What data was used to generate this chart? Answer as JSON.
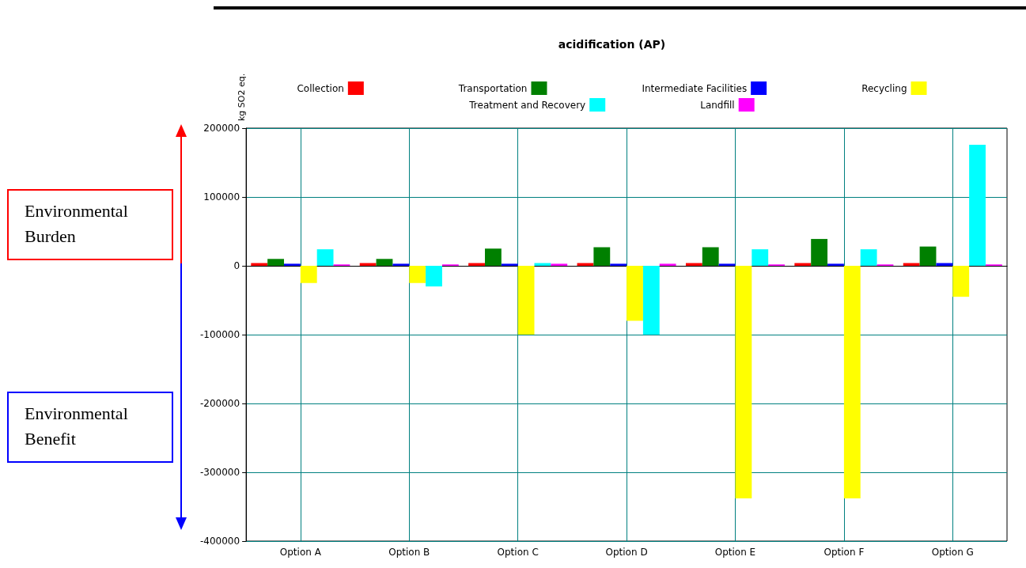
{
  "chart_data": {
    "type": "bar",
    "title": "acidification (AP)",
    "ylabel": "kg SO2 eq.",
    "categories": [
      "Option A",
      "Option B",
      "Option C",
      "Option D",
      "Option E",
      "Option F",
      "Option G"
    ],
    "series": [
      {
        "name": "Collection",
        "color": "#ff0000",
        "values": [
          4000,
          4000,
          4000,
          4000,
          4000,
          4000,
          4000
        ]
      },
      {
        "name": "Transportation",
        "color": "#008000",
        "values": [
          10000,
          10000,
          25000,
          27000,
          27000,
          39000,
          28000
        ]
      },
      {
        "name": "Intermediate Facilities",
        "color": "#0000ff",
        "values": [
          3000,
          3000,
          3000,
          3000,
          3000,
          3000,
          4000
        ]
      },
      {
        "name": "Recycling",
        "color": "#ffff00",
        "values": [
          -25000,
          -25000,
          -100000,
          -80000,
          -338000,
          -338000,
          -45000
        ]
      },
      {
        "name": "Treatment and Recovery",
        "color": "#00ffff",
        "values": [
          24000,
          -30000,
          4000,
          -100000,
          24000,
          24000,
          176000
        ]
      },
      {
        "name": "Landfill",
        "color": "#ff00ff",
        "values": [
          2000,
          2000,
          3000,
          3000,
          2000,
          2000,
          2000
        ]
      }
    ],
    "ylim": [
      -400000,
      200000
    ],
    "yticks": [
      -400000,
      -300000,
      -200000,
      -100000,
      0,
      100000,
      200000
    ],
    "grid": true,
    "legend": "top",
    "annotations": [
      "Environmental Burden",
      "Environmental Benefit"
    ]
  }
}
